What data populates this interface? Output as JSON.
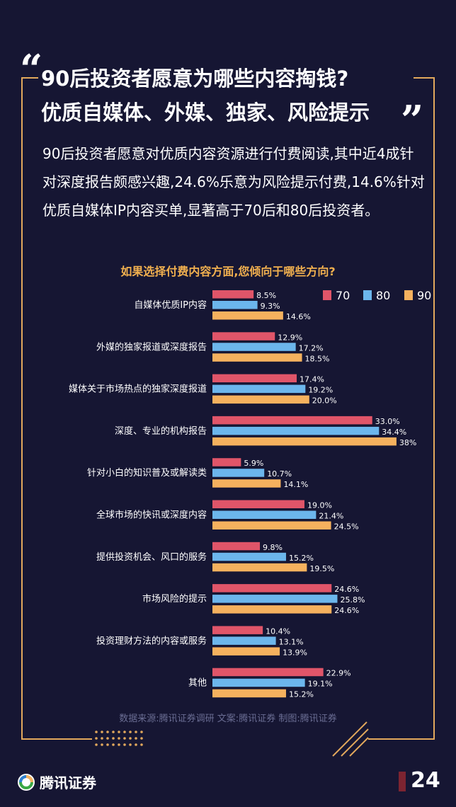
{
  "header": {
    "title_line1": "90后投资者愿意为哪些内容掏钱?",
    "title_line2": "优质自媒体、外媒、独家、风险提示",
    "open_quote": "“",
    "close_quote": "”"
  },
  "intro": {
    "text": "90后投资者愿意对优质内容资源进行付费阅读,其中近4成针对深度报告颇感兴趣,24.6%乐意为风险提示付费,14.6%针对优质自媒体IP内容买单,显著高于70后和80后投资者。"
  },
  "colors": {
    "s70": "#e05569",
    "s80": "#6cb6ec",
    "s90": "#f5b15e",
    "accent": "#e2a85c"
  },
  "chart_data": {
    "type": "bar",
    "orientation": "horizontal",
    "title": "如果选择付费内容方面,您倾向于哪些方向?",
    "legend_position": "top-right",
    "categories": [
      "自媒体优质IP内容",
      "外媒的独家报道或深度报告",
      "媒体关于市场热点的独家深度报道",
      "深度、专业的机构报告",
      "针对小白的知识普及或解读类",
      "全球市场的快讯或深度内容",
      "提供投资机会、风口的服务",
      "市场风险的提示",
      "投资理财方法的内容或服务",
      "其他"
    ],
    "series": [
      {
        "name": "70",
        "color": "#e05569",
        "values": [
          8.5,
          12.9,
          17.4,
          33.0,
          5.9,
          19.0,
          9.8,
          24.6,
          10.4,
          22.9
        ],
        "labels": [
          "8.5%",
          "12.9%",
          "17.4%",
          "33.0%",
          "5.9%",
          "19.0%",
          "9.8%",
          "24.6%",
          "10.4%",
          "22.9%"
        ]
      },
      {
        "name": "80",
        "color": "#6cb6ec",
        "values": [
          9.3,
          17.2,
          19.2,
          34.4,
          10.7,
          21.4,
          15.2,
          25.8,
          13.1,
          19.1
        ],
        "labels": [
          "9.3%",
          "17.2%",
          "19.2%",
          "34.4%",
          "10.7%",
          "21.4%",
          "15.2%",
          "25.8%",
          "13.1%",
          "19.1%"
        ]
      },
      {
        "name": "90",
        "color": "#f5b15e",
        "values": [
          14.6,
          18.5,
          20.0,
          38,
          14.1,
          24.5,
          19.5,
          24.6,
          13.9,
          15.2
        ],
        "labels": [
          "14.6%",
          "18.5%",
          "20.0%",
          "38%",
          "14.1%",
          "24.5%",
          "19.5%",
          "24.6%",
          "13.9%",
          "15.2%"
        ]
      }
    ],
    "grid": false
  },
  "footer": {
    "source": "数据来源:腾讯证券调研 文案:腾讯证券 制图:腾讯证券",
    "brand": "腾讯证券",
    "page_number": "24"
  }
}
